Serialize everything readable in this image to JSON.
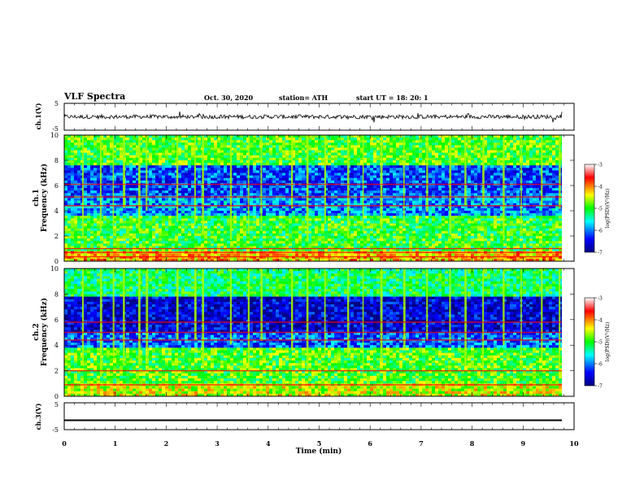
{
  "header": {
    "title": "VLF Spectra",
    "date": "Oct. 30, 2020",
    "station": "station= ATH",
    "start": "start  UT =    18: 20: 1"
  },
  "chart_data": [
    {
      "type": "line",
      "title": "",
      "ylabel": "ch.1(V)",
      "ylim": [
        -5,
        5
      ],
      "yticks": [
        "5",
        "-5"
      ],
      "xlim": [
        0,
        10
      ],
      "series": [
        {
          "description": "noisy waveform around 0 V, amplitude about ±1.5 V",
          "level": 0,
          "amplitude": 1.5
        }
      ]
    },
    {
      "type": "heatmap",
      "title": "",
      "ylabel": "ch.1\nFrequency (kHz)",
      "ylabel_line1": "ch.1",
      "ylabel_line2": "Frequency (kHz)",
      "ylim": [
        0,
        10
      ],
      "yticks": [
        "0",
        "2",
        "4",
        "6",
        "8",
        "10"
      ],
      "xlim": [
        0,
        10
      ],
      "colorbar": {
        "label": "log(PSD)(V²/Hz)",
        "min": -7,
        "max": -3,
        "ticks": [
          "-3",
          "-4",
          "-5",
          "-6",
          "-7"
        ]
      },
      "bands_khz": [
        {
          "from": 0,
          "to": 0.8,
          "level": -4.2
        },
        {
          "from": 0.8,
          "to": 3.6,
          "level": -5.0
        },
        {
          "from": 3.6,
          "to": 5.2,
          "level": -5.9
        },
        {
          "from": 5.2,
          "to": 7.6,
          "level": -6.2
        },
        {
          "from": 7.6,
          "to": 10,
          "level": -4.9
        }
      ],
      "lines_khz": [
        0.35,
        0.7,
        1.0,
        4.4,
        5.1,
        6.1
      ],
      "sferic_times_min": [
        0.35,
        0.7,
        0.95,
        1.15,
        1.45,
        1.6,
        2.2,
        2.55,
        2.7,
        3.25,
        3.6,
        3.85,
        4.45,
        4.75,
        5.1,
        5.55,
        5.85,
        6.2,
        6.65,
        7.1,
        7.55,
        7.85,
        8.2,
        8.6,
        8.95,
        9.35,
        9.7
      ]
    },
    {
      "type": "heatmap",
      "title": "",
      "ylabel": "ch.2\nFrequency (kHz)",
      "ylabel_line1": "ch.2",
      "ylabel_line2": "Frequency (kHz)",
      "ylim": [
        0,
        10
      ],
      "yticks": [
        "0",
        "2",
        "4",
        "6",
        "8",
        "10"
      ],
      "xlim": [
        0,
        10
      ],
      "colorbar": {
        "label": "log(PSD)(V²/Hz)",
        "min": -7,
        "max": -3,
        "ticks": [
          "-3",
          "-4",
          "-5",
          "-6",
          "-7"
        ]
      },
      "bands_khz": [
        {
          "from": 0,
          "to": 1.0,
          "level": -4.5
        },
        {
          "from": 1.0,
          "to": 3.8,
          "level": -4.9
        },
        {
          "from": 3.8,
          "to": 5.0,
          "level": -6.1
        },
        {
          "from": 5.0,
          "to": 7.8,
          "level": -6.6
        },
        {
          "from": 7.8,
          "to": 10,
          "level": -5.2
        }
      ],
      "lines_khz": [
        0.9,
        2.0,
        4.4,
        5.0,
        5.8
      ],
      "sferic_times_min": [
        0.35,
        0.7,
        0.95,
        1.15,
        1.45,
        1.6,
        2.2,
        2.55,
        2.7,
        3.25,
        3.6,
        3.85,
        4.45,
        4.75,
        5.1,
        5.55,
        5.85,
        6.2,
        6.65,
        7.1,
        7.55,
        7.85,
        8.2,
        8.6,
        8.95,
        9.35,
        9.7
      ]
    },
    {
      "type": "line",
      "title": "",
      "ylabel": "ch.3(V)",
      "xlabel": "Time  (min)",
      "ylim": [
        -5,
        5
      ],
      "yticks": [
        "5",
        "-5"
      ],
      "xlim": [
        0,
        10
      ],
      "xticks": [
        "0",
        "1",
        "2",
        "3",
        "4",
        "5",
        "6",
        "7",
        "8",
        "9",
        "10"
      ],
      "series": [
        {
          "description": "flat thick signal near -1.5 V",
          "level": -1.5,
          "amplitude": 0.3
        }
      ]
    }
  ]
}
